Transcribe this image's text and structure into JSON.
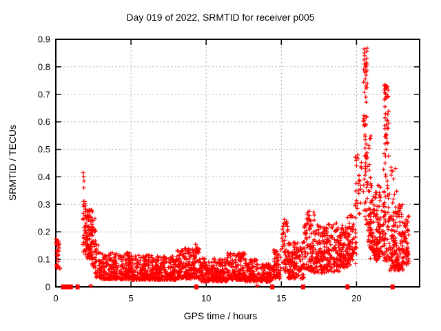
{
  "chart_data": {
    "type": "scatter",
    "title": "Day 019 of 2022, SRMTID for receiver p005",
    "xlabel": "GPS time / hours",
    "ylabel": "SRMTID / TECUs",
    "xlim": [
      0,
      24.2
    ],
    "ylim": [
      0,
      0.9
    ],
    "xticks": {
      "values": [
        0,
        5,
        10,
        15,
        20
      ],
      "labels": [
        "0",
        "5",
        "10",
        "15",
        "20"
      ]
    },
    "yticks": {
      "values": [
        0,
        0.1,
        0.2,
        0.3,
        0.4,
        0.5,
        0.6,
        0.7,
        0.8,
        0.9
      ],
      "labels": [
        "0",
        "0.1",
        "0.2",
        "0.3",
        "0.4",
        "0.5",
        "0.6",
        "0.7",
        "0.8",
        "0.9"
      ]
    },
    "grid": {
      "show": true,
      "color": "#a8a8a8",
      "dash": [
        2,
        3.4
      ]
    },
    "border_color": "#000000",
    "text_color": "#000000",
    "background": "#ffffff",
    "legend": "none",
    "peaks": [
      {
        "x": 1.9,
        "y": 0.41
      },
      {
        "x": 20.5,
        "y": 0.87
      },
      {
        "x": 21.9,
        "y": 0.73
      }
    ],
    "baseline_band_y": [
      0.03,
      0.12
    ],
    "series": [
      {
        "name": "SRMTID",
        "marker": "plus",
        "color": "#ff0000",
        "marker_px": 7,
        "cluster_model": {
          "seed": 20220119,
          "clusters": [
            [
              0.02,
              0.27,
              34,
              0.065,
              0.175,
              1.0
            ],
            [
              1.78,
              2.02,
              24,
              0.1,
              0.32,
              0.85
            ],
            [
              1.95,
              2.45,
              95,
              0.1,
              0.285,
              1.15
            ],
            [
              2.35,
              2.65,
              30,
              0.07,
              0.25,
              1.4
            ],
            [
              2.6,
              2.95,
              26,
              0.035,
              0.16,
              1.35
            ],
            [
              2.9,
              5.0,
              285,
              0.028,
              0.125,
              1.7
            ],
            [
              5.0,
              8.0,
              400,
              0.025,
              0.115,
              1.75
            ],
            [
              8.0,
              9.6,
              210,
              0.03,
              0.14,
              1.6
            ],
            [
              9.0,
              9.55,
              12,
              0.1,
              0.155,
              1.0
            ],
            [
              9.6,
              11.4,
              235,
              0.02,
              0.105,
              1.65
            ],
            [
              11.4,
              12.6,
              160,
              0.025,
              0.125,
              1.6
            ],
            [
              12.6,
              13.6,
              130,
              0.02,
              0.1,
              1.65
            ],
            [
              13.6,
              14.4,
              85,
              0.018,
              0.085,
              1.5
            ],
            [
              14.4,
              15.0,
              70,
              0.03,
              0.135,
              1.35
            ],
            [
              15.0,
              15.45,
              48,
              0.05,
              0.245,
              1.3
            ],
            [
              15.45,
              16.5,
              135,
              0.03,
              0.165,
              1.45
            ],
            [
              16.5,
              17.2,
              95,
              0.055,
              0.275,
              1.4
            ],
            [
              17.2,
              18.0,
              115,
              0.05,
              0.225,
              1.3
            ],
            [
              18.0,
              18.85,
              115,
              0.055,
              0.235,
              1.3
            ],
            [
              18.85,
              19.5,
              95,
              0.07,
              0.225,
              1.25
            ],
            [
              19.4,
              20.0,
              60,
              0.08,
              0.26,
              1.3
            ],
            [
              19.85,
              20.35,
              26,
              0.24,
              0.5,
              1.0
            ],
            [
              20.45,
              20.72,
              62,
              0.22,
              0.875,
              0.95
            ],
            [
              20.7,
              21.0,
              40,
              0.15,
              0.55,
              1.2
            ],
            [
              20.9,
              21.6,
              110,
              0.1,
              0.38,
              1.35
            ],
            [
              21.8,
              22.15,
              36,
              0.38,
              0.735,
              0.95
            ],
            [
              21.3,
              22.2,
              100,
              0.095,
              0.37,
              1.4
            ],
            [
              22.2,
              23.1,
              150,
              0.06,
              0.3,
              1.5
            ],
            [
              22.3,
              22.9,
              8,
              0.3,
              0.44,
              1.0
            ],
            [
              23.1,
              23.5,
              55,
              0.08,
              0.26,
              1.3
            ]
          ]
        },
        "notable_points": [
          [
            0.08,
            0.17
          ],
          [
            1.82,
            0.415
          ],
          [
            1.85,
            0.4
          ],
          [
            1.88,
            0.385
          ],
          [
            1.86,
            0.36
          ],
          [
            9.3,
            0.155
          ],
          [
            15.2,
            0.245
          ],
          [
            16.85,
            0.275
          ],
          [
            19.95,
            0.47
          ],
          [
            20.0,
            0.44
          ],
          [
            20.5,
            0.865
          ],
          [
            20.52,
            0.85
          ],
          [
            20.55,
            0.84
          ],
          [
            20.5,
            0.825
          ],
          [
            20.53,
            0.81
          ],
          [
            20.48,
            0.79
          ],
          [
            21.9,
            0.735
          ],
          [
            21.92,
            0.72
          ],
          [
            21.95,
            0.7
          ],
          [
            21.88,
            0.68
          ],
          [
            21.9,
            0.655
          ],
          [
            21.93,
            0.63
          ],
          [
            21.9,
            0.615
          ],
          [
            21.9,
            0.575
          ],
          [
            21.95,
            0.555
          ],
          [
            21.9,
            0.52
          ],
          [
            21.97,
            0.5
          ],
          [
            21.93,
            0.475
          ],
          [
            22.3,
            0.435
          ],
          [
            22.6,
            0.43
          ]
        ]
      }
    ],
    "zero_markers": {
      "marker": "square",
      "color": "#ff0000",
      "x_squares": [
        0.48,
        0.55,
        0.65,
        0.78,
        1.0,
        1.45,
        9.35,
        14.4,
        16.45,
        19.4,
        22.4
      ],
      "x_plusses": [
        2.28,
        2.36,
        13.35,
        13.45
      ]
    }
  }
}
